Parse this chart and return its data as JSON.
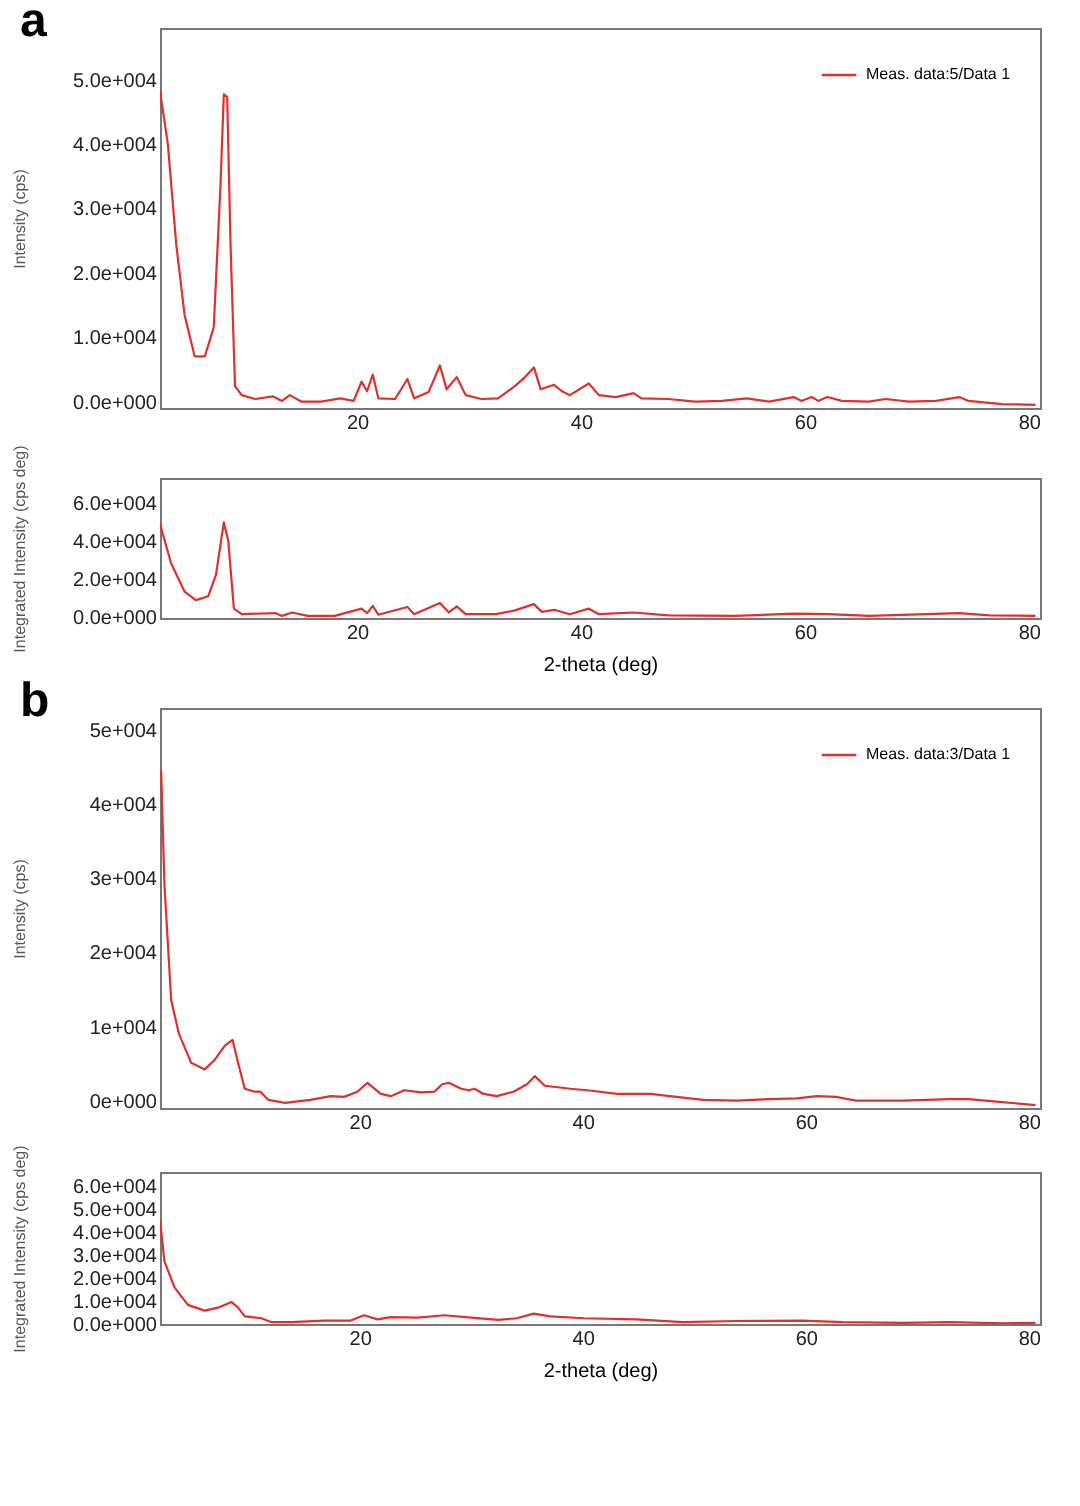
{
  "chart_data": [
    {
      "type": "line",
      "title": "a",
      "ylabel": "Intensity (cps)",
      "xlim": [
        2.4,
        81
      ],
      "xticks": [
        20,
        40,
        60,
        80
      ],
      "ylim": [
        -1000,
        58000
      ],
      "yticks": [
        {
          "value": 0,
          "label": "0.0e+000"
        },
        {
          "value": 10000,
          "label": "1.0e+004"
        },
        {
          "value": 20000,
          "label": "2.0e+004"
        },
        {
          "value": 30000,
          "label": "3.0e+004"
        },
        {
          "value": 40000,
          "label": "4.0e+004"
        },
        {
          "value": 50000,
          "label": "5.0e+004"
        }
      ],
      "legend": "top right",
      "series": [
        {
          "name": "Meas. data:5/Data 1",
          "color": "#e0302a",
          "x": [
            2.4,
            3.1,
            3.85,
            4.6,
            5.5,
            6.4,
            7.2,
            7.8,
            8.1,
            8.4,
            8.7,
            9.1,
            9.7,
            10.9,
            12.5,
            13.3,
            14.0,
            15.0,
            16.8,
            18.5,
            19.7,
            20.4,
            20.9,
            21.4,
            21.9,
            23.4,
            24.5,
            25.1,
            26.4,
            27.4,
            28.0,
            28.9,
            29.7,
            31.1,
            32.6,
            34.1,
            35.0,
            35.8,
            36.4,
            37.6,
            38.3,
            39.0,
            40.7,
            41.6,
            43.1,
            44.7,
            45.4,
            47.8,
            50.2,
            52.6,
            54.8,
            56.8,
            59.0,
            59.7,
            60.6,
            61.2,
            62.0,
            63.3,
            65.7,
            67.2,
            69.3,
            71.7,
            73.8,
            74.6,
            77.6,
            80.6
          ],
          "values": [
            48200,
            40000,
            24400,
            13400,
            7000,
            7000,
            11500,
            33500,
            47700,
            47300,
            24400,
            2400,
            1000,
            400,
            800,
            100,
            1000,
            0,
            0,
            500,
            100,
            3100,
            1600,
            4200,
            500,
            400,
            3500,
            500,
            1500,
            5600,
            1900,
            3800,
            1000,
            400,
            500,
            2400,
            3800,
            5300,
            1900,
            2600,
            1600,
            1000,
            2800,
            1000,
            700,
            1300,
            500,
            400,
            0,
            100,
            500,
            0,
            700,
            100,
            700,
            100,
            700,
            100,
            0,
            400,
            0,
            100,
            700,
            100,
            -400,
            -500
          ]
        }
      ]
    },
    {
      "type": "line",
      "xlabel": "2-theta (deg)",
      "ylabel": "Integrated Intensity (cps deg)",
      "xlim": [
        2.4,
        81
      ],
      "xticks": [
        20,
        40,
        60,
        80
      ],
      "ylim": [
        -500,
        73000
      ],
      "yticks": [
        {
          "value": 0,
          "label": "0.0e+000"
        },
        {
          "value": 20000,
          "label": "2.0e+004"
        },
        {
          "value": 40000,
          "label": "4.0e+004"
        },
        {
          "value": 60000,
          "label": "6.0e+004"
        }
      ],
      "series": [
        {
          "color": "#e0302a",
          "x": [
            2.4,
            3.4,
            4.6,
            5.6,
            6.7,
            7.4,
            8.1,
            8.5,
            9.0,
            9.7,
            12.7,
            13.3,
            14.2,
            15.6,
            18.0,
            20.4,
            20.9,
            21.4,
            21.9,
            24.5,
            25.1,
            27.4,
            28.2,
            28.9,
            29.7,
            32.4,
            34.1,
            35.8,
            36.5,
            37.6,
            39.0,
            40.7,
            41.6,
            44.7,
            47.8,
            53.8,
            59.0,
            62.1,
            65.7,
            73.8,
            76.5,
            80.6
          ],
          "values": [
            48800,
            28100,
            13300,
            8900,
            10900,
            22200,
            49700,
            39900,
            4400,
            1500,
            2100,
            600,
            2400,
            600,
            600,
            4400,
            2100,
            5900,
            1200,
            5300,
            1500,
            7400,
            2400,
            5600,
            1500,
            1500,
            3500,
            6800,
            2700,
            3800,
            1500,
            4400,
            1500,
            2400,
            900,
            600,
            1800,
            1500,
            600,
            2100,
            900,
            600
          ]
        }
      ]
    },
    {
      "type": "line",
      "title": "b",
      "ylabel": "Intensity (cps)",
      "xlim": [
        2.1,
        81
      ],
      "xticks": [
        20,
        40,
        60,
        80
      ],
      "ylim": [
        -1000,
        53000
      ],
      "yticks": [
        {
          "value": 0,
          "label": "0e+000"
        },
        {
          "value": 10000,
          "label": "1e+004"
        },
        {
          "value": 20000,
          "label": "2e+004"
        },
        {
          "value": 30000,
          "label": "3e+004"
        },
        {
          "value": 40000,
          "label": "4e+004"
        },
        {
          "value": 50000,
          "label": "5e+004"
        }
      ],
      "legend": "top right",
      "series": [
        {
          "name": "Meas. data:3/Data 1",
          "color": "#e0302a",
          "x": [
            2.2,
            2.5,
            3.1,
            3.8,
            4.9,
            6.1,
            7.0,
            7.9,
            8.6,
            9.1,
            9.7,
            10.6,
            11.1,
            11.8,
            13.3,
            15.6,
            17.4,
            18.6,
            19.8,
            20.7,
            21.9,
            22.8,
            24.0,
            25.5,
            26.7,
            27.4,
            28.0,
            29.1,
            29.8,
            30.3,
            31.1,
            32.3,
            33.8,
            35.0,
            35.7,
            36.6,
            38.9,
            40.4,
            43.1,
            46.1,
            47.8,
            50.8,
            53.8,
            56.8,
            59.2,
            61.0,
            62.7,
            64.5,
            68.7,
            72.9,
            74.6,
            77.6,
            80.6
          ],
          "values": [
            44600,
            29100,
            13600,
            9000,
            5100,
            4200,
            5500,
            7400,
            8200,
            5100,
            1600,
            1200,
            1200,
            100,
            -300,
            100,
            600,
            500,
            1200,
            2400,
            900,
            600,
            1400,
            1100,
            1200,
            2200,
            2400,
            1600,
            1400,
            1600,
            900,
            600,
            1200,
            2200,
            3300,
            2000,
            1600,
            1400,
            900,
            900,
            600,
            100,
            0,
            200,
            300,
            600,
            500,
            0,
            0,
            200,
            200,
            -200,
            -600
          ]
        }
      ]
    },
    {
      "type": "line",
      "xlabel": "2-theta (deg)",
      "ylabel": "Integrated Intensity (cps deg)",
      "xlim": [
        2.1,
        81
      ],
      "xticks": [
        20,
        40,
        60,
        80
      ],
      "ylim": [
        0,
        66000
      ],
      "yticks": [
        {
          "value": 0,
          "label": "0.0e+000"
        },
        {
          "value": 10000,
          "label": "1.0e+004"
        },
        {
          "value": 20000,
          "label": "2.0e+004"
        },
        {
          "value": 30000,
          "label": "3.0e+004"
        },
        {
          "value": 40000,
          "label": "4.0e+004"
        },
        {
          "value": 50000,
          "label": "5.0e+004"
        },
        {
          "value": 60000,
          "label": "6.0e+004"
        }
      ],
      "series": [
        {
          "color": "#e0302a",
          "x": [
            2.1,
            2.5,
            3.4,
            4.6,
            6.1,
            7.3,
            8.5,
            9.1,
            9.7,
            11.2,
            12.1,
            13.9,
            16.8,
            19.2,
            20.4,
            21.6,
            22.8,
            25.2,
            27.6,
            30.0,
            32.4,
            34.1,
            35.6,
            37.1,
            40.1,
            44.8,
            49.0,
            53.8,
            59.7,
            63.3,
            68.7,
            72.9,
            77.6,
            80.6
          ],
          "values": [
            44900,
            27200,
            15900,
            8300,
            5800,
            7100,
            9600,
            7100,
            3300,
            2500,
            800,
            800,
            1500,
            1500,
            3800,
            2000,
            3000,
            2800,
            3800,
            2800,
            1800,
            2500,
            4500,
            3300,
            2500,
            2000,
            800,
            1300,
            1500,
            800,
            500,
            800,
            300,
            500
          ]
        }
      ]
    }
  ]
}
